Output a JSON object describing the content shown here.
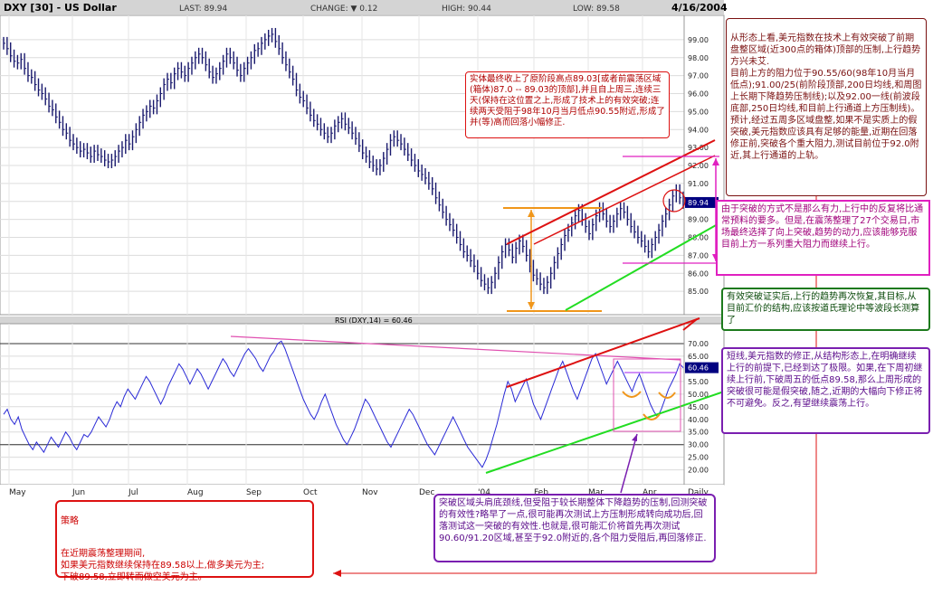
{
  "header": {
    "symbol": "DXY [30] - US Dollar",
    "last": "LAST: 89.94",
    "change": "CHANGE: ▼ 0.12",
    "high": "HIGH: 90.44",
    "low": "LOW: 89.58",
    "date": "4/16/2004"
  },
  "colors": {
    "bar": "#1a1a6e",
    "rsi": "#2a2ad6",
    "red": "#dd1111",
    "green": "#22dd22",
    "orange": "#f0961a",
    "magenta": "#e020c0",
    "maroon": "#7a1010",
    "purple": "#7a1fb0",
    "darkgreen": "#1d7a1d",
    "pink": "#e050b0",
    "header": "#d4d4d4"
  },
  "chart_data": [
    {
      "type": "bar",
      "title": "DXY [30] - US Dollar",
      "subtitle": "OHLC daily",
      "y_ticks": [
        "85.00",
        "86.00",
        "87.00",
        "88.00",
        "89.00",
        "90.00",
        "91.00",
        "92.00",
        "93.00",
        "94.00",
        "95.00",
        "96.00",
        "97.00",
        "98.00",
        "99.00"
      ],
      "ylim": [
        84.0,
        100.0
      ],
      "x_ticks": [
        "May",
        "Jun",
        "Jul",
        "Aug",
        "Sep",
        "Oct",
        "Nov",
        "Dec",
        "'04",
        "Feb",
        "Mar",
        "Apr",
        "Daily"
      ],
      "last_value": "89.94",
      "close_series": [
        98.8,
        98.5,
        98.1,
        97.8,
        97.7,
        97.9,
        97.4,
        97.0,
        96.9,
        96.5,
        96.2,
        96.0,
        95.7,
        95.3,
        95.1,
        94.7,
        94.4,
        94.0,
        93.8,
        93.4,
        93.2,
        93.0,
        92.8,
        92.9,
        92.7,
        92.5,
        92.8,
        92.6,
        92.5,
        92.3,
        92.2,
        92.3,
        92.5,
        92.8,
        93.0,
        93.4,
        93.2,
        93.6,
        94.0,
        94.4,
        94.8,
        95.0,
        95.3,
        95.2,
        95.6,
        96.0,
        96.5,
        96.8,
        96.6,
        97.1,
        97.4,
        97.2,
        97.0,
        97.4,
        97.7,
        98.0,
        98.2,
        98.0,
        97.6,
        97.2,
        96.9,
        97.1,
        97.4,
        97.8,
        98.2,
        98.0,
        97.7,
        97.3,
        97.0,
        97.4,
        97.7,
        98.0,
        98.4,
        98.5,
        98.8,
        99.0,
        99.2,
        99.3,
        98.9,
        98.5,
        98.0,
        97.6,
        97.2,
        96.8,
        96.2,
        95.8,
        95.6,
        95.2,
        94.8,
        94.5,
        94.3,
        94.0,
        93.8,
        93.6,
        93.8,
        94.2,
        94.4,
        94.6,
        94.3,
        94.1,
        93.8,
        93.5,
        93.1,
        92.7,
        92.5,
        92.2,
        92.0,
        91.8,
        92.0,
        92.4,
        92.9,
        93.4,
        93.6,
        93.4,
        93.2,
        92.9,
        92.6,
        92.3,
        92.0,
        91.7,
        91.5,
        91.3,
        91.0,
        90.7,
        90.2,
        89.8,
        89.4,
        89.0,
        88.7,
        88.4,
        88.0,
        87.6,
        87.2,
        87.0,
        86.7,
        86.4,
        86.0,
        85.6,
        85.4,
        85.2,
        85.5,
        86.0,
        86.6,
        87.2,
        87.6,
        87.3,
        86.9,
        87.4,
        87.8,
        87.5,
        87.0,
        86.4,
        85.9,
        85.7,
        85.4,
        85.2,
        85.5,
        86.0,
        86.6,
        87.1,
        87.6,
        88.1,
        88.4,
        88.8,
        89.2,
        89.5,
        89.0,
        88.6,
        88.2,
        88.7,
        89.2,
        89.6,
        89.3,
        88.9,
        88.6,
        88.9,
        89.3,
        89.6,
        89.4,
        89.0,
        88.6,
        88.3,
        88.0,
        87.8,
        87.5,
        87.2,
        87.6,
        88.0,
        88.4,
        88.9,
        89.3,
        89.8,
        90.3,
        90.6,
        90.2,
        89.94
      ],
      "rsi": {
        "label": "RSI (DXY,14) = 60.46",
        "y_ticks": [
          "20.00",
          "25.00",
          "30.00",
          "35.00",
          "40.00",
          "45.00",
          "50.00",
          "55.00",
          "60.00",
          "65.00",
          "70.00"
        ],
        "ylim": [
          17.0,
          75.0
        ],
        "last_value": "60.46",
        "values": [
          42,
          44,
          40,
          38,
          41,
          36,
          33,
          30,
          28,
          31,
          29,
          27,
          30,
          33,
          31,
          29,
          32,
          35,
          33,
          30,
          28,
          31,
          34,
          33,
          35,
          38,
          41,
          39,
          37,
          40,
          44,
          47,
          45,
          49,
          52,
          50,
          48,
          51,
          54,
          57,
          55,
          52,
          49,
          46,
          49,
          53,
          56,
          59,
          62,
          60,
          57,
          54,
          57,
          60,
          58,
          55,
          52,
          55,
          58,
          61,
          64,
          62,
          59,
          57,
          60,
          63,
          66,
          68,
          66,
          64,
          61,
          59,
          62,
          65,
          67,
          70,
          71,
          68,
          64,
          60,
          56,
          52,
          48,
          45,
          42,
          40,
          43,
          47,
          50,
          46,
          42,
          38,
          35,
          32,
          30,
          33,
          36,
          40,
          44,
          48,
          46,
          43,
          40,
          37,
          34,
          31,
          29,
          32,
          35,
          38,
          41,
          44,
          42,
          39,
          36,
          33,
          30,
          28,
          26,
          29,
          32,
          35,
          38,
          41,
          38,
          35,
          32,
          29,
          27,
          25,
          23,
          21,
          24,
          28,
          33,
          38,
          44,
          50,
          55,
          52,
          47,
          50,
          53,
          56,
          51,
          46,
          43,
          40,
          44,
          48,
          52,
          56,
          60,
          63,
          59,
          55,
          51,
          48,
          52,
          56,
          60,
          64,
          66,
          62,
          58,
          54,
          57,
          60,
          63,
          60,
          57,
          54,
          51,
          55,
          58,
          54,
          50,
          46,
          43,
          41,
          44,
          48,
          52,
          55,
          58,
          62,
          60.46
        ],
        "ref_lines": [
          70,
          30
        ]
      }
    }
  ],
  "annotations": {
    "top_right": "从形态上看,美元指数在技术上有效突破了前期盘整区域(近300点的箱体)顶部的压制,上行趋势方兴未艾.\n目前上方的阻力位于90.55/60(98年10月当月低点);91.00/25(前阶段顶部,200日均线,和周图上长期下降趋势压制线);以及92.00一线(前波段底部,250日均线,和目前上行通道上方压制线)。\n预计,经过五周多区域盘整,如果不是实质上的假突破,美元指数应该具有足够的能量,近期在回落修正前,突破各个重大阻力,测试目前位于92.0附近,其上行通道的上轨。",
    "middle_right": "由于突破的方式不是那么有力,上行中的反复将比通常预料的要多。但是,在震荡整理了27个交易日,市场最终选择了向上突破,趋势的动力,应该能够克服目前上方一系列重大阻力而继续上行。",
    "green_box": "有效突破证实后,上行的趋势再次恢复,其目标,从目前汇价的结构,应该按道氏理论中等波段长测算了",
    "purple_right": "短线,美元指数的修正,从结构形态上,在明确继续上行的前提下,已经到达了极限。如果,在下周初继续上行前,下破周五的低点89.58,那么上周形成的突破很可能是假突破,随之,近期的大幅向下修正将不可避免。反之,有望继续震荡上行。",
    "red_chart": "实体最终收上了原阶段高点89.03[或者前震荡区域(箱体)87.0 -- 89.03的顶部],并且自上周三,连续三天(保持在这位置之上,形成了技术上的有效突破;连续两天受阻于98年10月当月低点90.55附近,形成了并(等)高而回落小幅修正.",
    "strategy_title": "策略",
    "strategy_body": "在近期震荡整理期间,\n如果美元指数继续保持在89.58以上,做多美元为主;\n下破89.58,立即转而做空美元为主。",
    "bottom_purple": "突破区域头肩底颈线,但受阻于较长期整体下降趋势的压制,回测突破的有效性?略早了一点,很可能再次测试上方压制形成转向成功后,回落测试这一突破的有效性.也就是,很可能汇价将首先再次测试90.60/91.20区域,甚至于92.0附近的,各个阻力受阻后,再回落修正."
  }
}
